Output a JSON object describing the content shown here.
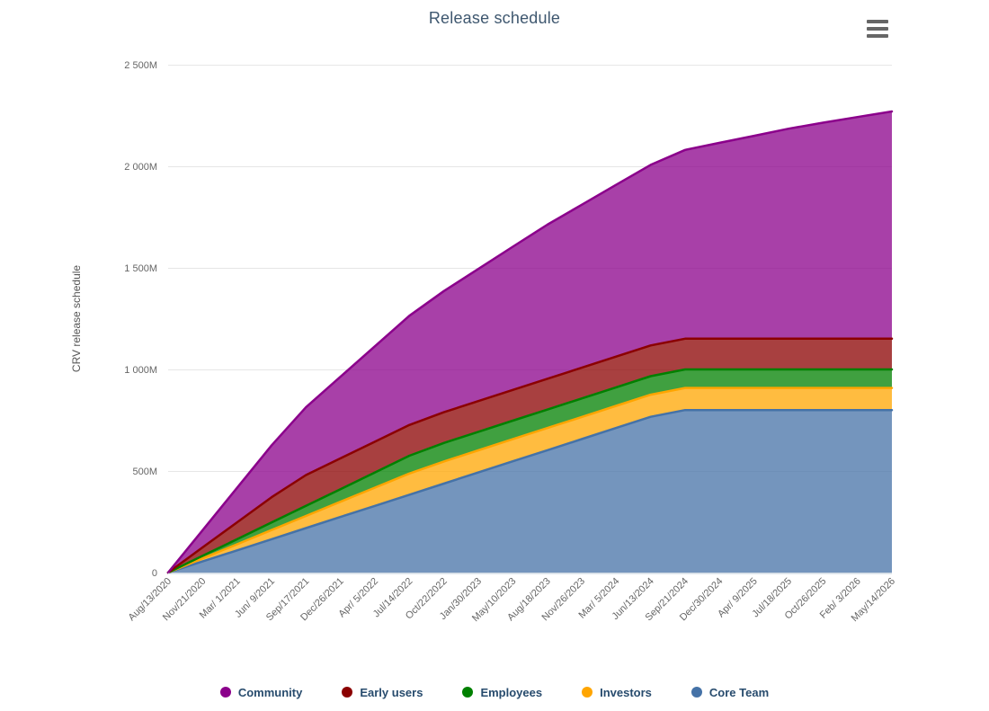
{
  "chart": {
    "title": "Release schedule",
    "export_menu_icon": "hamburger-menu-icon"
  },
  "chart_data": {
    "type": "area",
    "stacking": "normal",
    "title": "Release schedule",
    "xlabel": "",
    "ylabel": "CRV release schedule",
    "unit": "millions of CRV tokens",
    "ylim": [
      0,
      2500
    ],
    "ytick_interval": 500,
    "ytick_labels": [
      "0",
      "500M",
      "1 000M",
      "1 500M",
      "2 000M",
      "2 500M"
    ],
    "grid": "horizontal",
    "legend_position": "bottom",
    "x_label_rotation": -45,
    "categories": [
      "Aug/13/2020",
      "Nov/21/2020",
      "Mar/ 1/2021",
      "Jun/ 9/2021",
      "Sep/17/2021",
      "Dec/26/2021",
      "Apr/ 5/2022",
      "Jul/14/2022",
      "Oct/22/2022",
      "Jan/30/2023",
      "May/10/2023",
      "Aug/18/2023",
      "Nov/26/2023",
      "Mar/ 5/2024",
      "Jun/13/2024",
      "Sep/21/2024",
      "Dec/30/2024",
      "Apr/ 9/2025",
      "Jul/18/2025",
      "Oct/26/2025",
      "Feb/ 3/2026",
      "May/14/2026"
    ],
    "series": [
      {
        "name": "Community",
        "color": "#8B008B",
        "values": [
          0,
          84.9,
          169.9,
          254.8,
          333.8,
          401.7,
          469.7,
          537.6,
          596.1,
          650.4,
          704.8,
          758.6,
          802.1,
          845.5,
          889.0,
          929.0,
          963.8,
          998.6,
          1033.4,
          1063.0,
          1090.8,
          1118.6
        ]
      },
      {
        "name": "Early users",
        "color": "#8B0000",
        "values": [
          0,
          41.5,
          83.0,
          124.5,
          151.5,
          151.5,
          151.5,
          151.5,
          151.5,
          151.5,
          151.5,
          151.5,
          151.5,
          151.5,
          151.5,
          151.5,
          151.5,
          151.5,
          151.5,
          151.5,
          151.5,
          151.5
        ]
      },
      {
        "name": "Employees",
        "color": "#008000",
        "values": [
          0,
          12.5,
          24.9,
          37.4,
          49.9,
          62.3,
          74.8,
          87.3,
          91,
          91,
          91,
          91,
          91,
          91,
          91,
          91,
          91,
          91,
          91,
          91,
          91,
          91
        ]
      },
      {
        "name": "Investors",
        "color": "#FFA500",
        "values": [
          0,
          14.9,
          29.9,
          44.8,
          59.7,
          74.7,
          89.6,
          104.5,
          109,
          109,
          109,
          109,
          109,
          109,
          109,
          109,
          109,
          109,
          109,
          109,
          109,
          109
        ]
      },
      {
        "name": "Core Team",
        "color": "#4572A7",
        "values": [
          0,
          54.8,
          109.5,
          164.3,
          219.0,
          273.8,
          328.5,
          383.3,
          438.1,
          492.8,
          547.6,
          602.3,
          657.1,
          711.8,
          766.6,
          800,
          800,
          800,
          800,
          800,
          800,
          800
        ]
      }
    ],
    "stack_order_bottom_to_top": [
      "Core Team",
      "Investors",
      "Employees",
      "Early users",
      "Community"
    ],
    "fill_opacity": 0.75,
    "totals_note": {
      "total_at_last_point_M": 2270.1,
      "total_at_Jun_13_2024_M": 2007.1
    }
  },
  "style_colors": {
    "grid_line": "#e6e6e6",
    "axis_line": "#C0D0E0",
    "axis_label": "#666666",
    "y_axis_title": "#555555",
    "title": "#3E576F",
    "legend_text": "#274b6d",
    "export_icon": "#666666"
  }
}
